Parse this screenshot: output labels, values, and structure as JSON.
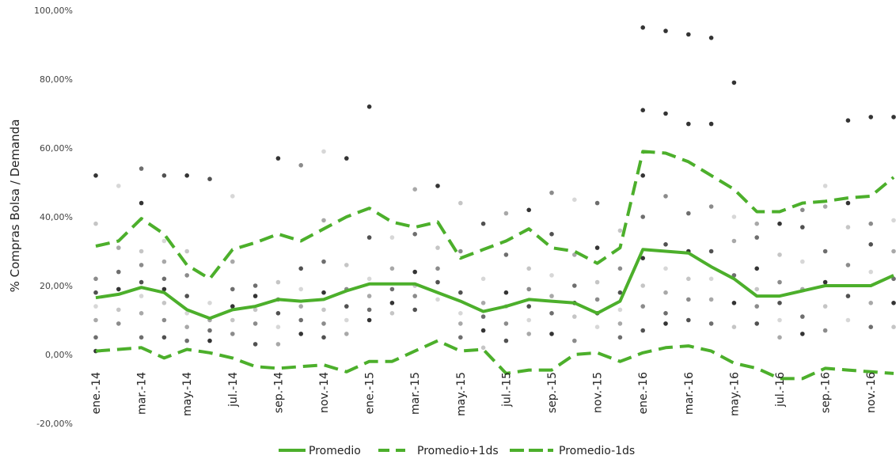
{
  "chart_data": {
    "type": "line",
    "ylabel": "% Compras Bolsa / Demanda",
    "ylim": [
      -20,
      100
    ],
    "yticks": [
      "-20,00%",
      "0,00%",
      "20,00%",
      "40,00%",
      "60,00%",
      "80,00%",
      "100,00%"
    ],
    "ytick_values": [
      -20,
      0,
      20,
      40,
      60,
      80,
      100
    ],
    "x_labels": [
      "ene.-14",
      "mar.-14",
      "may.-14",
      "jul.-14",
      "sep.-14",
      "nov.-14",
      "ene.-15",
      "mar.-15",
      "may.-15",
      "jul.-15",
      "sep.-15",
      "nov.-15",
      "ene.-16",
      "mar.-16",
      "may.-16",
      "jul.-16",
      "sep.-16",
      "nov.-16"
    ],
    "x": [
      "ene.-14",
      "feb.-14",
      "mar.-14",
      "abr.-14",
      "may.-14",
      "jun.-14",
      "jul.-14",
      "ago.-14",
      "sep.-14",
      "oct.-14",
      "nov.-14",
      "dic.-14",
      "ene.-15",
      "feb.-15",
      "mar.-15",
      "abr.-15",
      "may.-15",
      "jun.-15",
      "jul.-15",
      "ago.-15",
      "sep.-15",
      "oct.-15",
      "nov.-15",
      "dic.-15",
      "ene.-16",
      "feb.-16",
      "mar.-16",
      "abr.-16",
      "may.-16",
      "jun.-16",
      "jul.-16",
      "ago.-16",
      "sep.-16",
      "oct.-16",
      "nov.-16",
      "dic.-16"
    ],
    "series": [
      {
        "name": "Promedio",
        "style": "solid",
        "color": "#4caf2b",
        "values": [
          16.5,
          17.5,
          19.5,
          18,
          13,
          10.5,
          13,
          14,
          16,
          15.5,
          16,
          18.5,
          20.5,
          20.5,
          20.5,
          18,
          15.5,
          12.5,
          14,
          16,
          15.5,
          15,
          12,
          15.5,
          30.5,
          30,
          29.5,
          25.5,
          22,
          17,
          17,
          18.5,
          20,
          20,
          20,
          23
        ]
      },
      {
        "name": "Promedio+1ds",
        "style": "dashed",
        "color": "#4caf2b",
        "values": [
          31.5,
          33,
          39.5,
          35,
          26,
          22,
          30.5,
          32.5,
          35,
          33,
          36.5,
          40,
          42.5,
          38.5,
          37,
          38.5,
          28,
          30.5,
          33,
          36.5,
          31,
          30,
          26.5,
          31,
          59,
          58.5,
          56,
          52,
          48,
          41.5,
          41.5,
          44,
          44.5,
          45.5,
          46,
          51.5
        ]
      },
      {
        "name": "Promedio-1ds",
        "style": "dashed",
        "color": "#4caf2b",
        "values": [
          1,
          1.5,
          2,
          -1,
          1.5,
          0.5,
          -1,
          -3.5,
          -4,
          -3.5,
          -3,
          -5,
          -2,
          -2,
          1,
          4,
          1,
          1.5,
          -5.5,
          -4.5,
          -4.5,
          0,
          0.5,
          -2,
          0.5,
          2,
          2.5,
          1,
          -2.5,
          -4,
          -7,
          -7,
          -4,
          -4.5,
          -5,
          -5.5
        ]
      }
    ],
    "scatter": {
      "description": "individual observations",
      "points": [
        [
          0,
          52
        ],
        [
          0,
          38
        ],
        [
          0,
          22
        ],
        [
          0,
          18
        ],
        [
          0,
          14
        ],
        [
          0,
          10
        ],
        [
          0,
          5
        ],
        [
          0,
          1
        ],
        [
          1,
          49
        ],
        [
          1,
          31
        ],
        [
          1,
          24
        ],
        [
          1,
          19
        ],
        [
          1,
          13
        ],
        [
          1,
          9
        ],
        [
          2,
          54
        ],
        [
          2,
          44
        ],
        [
          2,
          30
        ],
        [
          2,
          26
        ],
        [
          2,
          21
        ],
        [
          2,
          17
        ],
        [
          2,
          12
        ],
        [
          2,
          5
        ],
        [
          3,
          52
        ],
        [
          3,
          33
        ],
        [
          3,
          27
        ],
        [
          3,
          22
        ],
        [
          3,
          19
        ],
        [
          3,
          15
        ],
        [
          3,
          10
        ],
        [
          3,
          5
        ],
        [
          4,
          52
        ],
        [
          4,
          30
        ],
        [
          4,
          23
        ],
        [
          4,
          17
        ],
        [
          4,
          12
        ],
        [
          4,
          8
        ],
        [
          4,
          4
        ],
        [
          5,
          51
        ],
        [
          5,
          15
        ],
        [
          5,
          10
        ],
        [
          5,
          7
        ],
        [
          5,
          4
        ],
        [
          6,
          46
        ],
        [
          6,
          27
        ],
        [
          6,
          19
        ],
        [
          6,
          14
        ],
        [
          6,
          10
        ],
        [
          6,
          6
        ],
        [
          7,
          20
        ],
        [
          7,
          17
        ],
        [
          7,
          13
        ],
        [
          7,
          9
        ],
        [
          7,
          3
        ],
        [
          8,
          57
        ],
        [
          8,
          21
        ],
        [
          8,
          16
        ],
        [
          8,
          12
        ],
        [
          8,
          8
        ],
        [
          8,
          3
        ],
        [
          9,
          55
        ],
        [
          9,
          25
        ],
        [
          9,
          19
        ],
        [
          9,
          14
        ],
        [
          9,
          10
        ],
        [
          9,
          6
        ],
        [
          10,
          59
        ],
        [
          10,
          39
        ],
        [
          10,
          27
        ],
        [
          10,
          18
        ],
        [
          10,
          13
        ],
        [
          10,
          9
        ],
        [
          10,
          5
        ],
        [
          11,
          57
        ],
        [
          11,
          26
        ],
        [
          11,
          19
        ],
        [
          11,
          14
        ],
        [
          11,
          10
        ],
        [
          11,
          6
        ],
        [
          12,
          72
        ],
        [
          12,
          34
        ],
        [
          12,
          22
        ],
        [
          12,
          17
        ],
        [
          12,
          13
        ],
        [
          12,
          10
        ],
        [
          13,
          34
        ],
        [
          13,
          25
        ],
        [
          13,
          19
        ],
        [
          13,
          15
        ],
        [
          13,
          12
        ],
        [
          14,
          48
        ],
        [
          14,
          35
        ],
        [
          14,
          24
        ],
        [
          14,
          20
        ],
        [
          14,
          17
        ],
        [
          14,
          13
        ],
        [
          15,
          49
        ],
        [
          15,
          31
        ],
        [
          15,
          25
        ],
        [
          15,
          21
        ],
        [
          15,
          16
        ],
        [
          16,
          44
        ],
        [
          16,
          30
        ],
        [
          16,
          18
        ],
        [
          16,
          12
        ],
        [
          16,
          9
        ],
        [
          16,
          5
        ],
        [
          17,
          38
        ],
        [
          17,
          22
        ],
        [
          17,
          15
        ],
        [
          17,
          11
        ],
        [
          17,
          7
        ],
        [
          17,
          2
        ],
        [
          18,
          41
        ],
        [
          18,
          29
        ],
        [
          18,
          18
        ],
        [
          18,
          14
        ],
        [
          18,
          9
        ],
        [
          18,
          4
        ],
        [
          19,
          42
        ],
        [
          19,
          25
        ],
        [
          19,
          19
        ],
        [
          19,
          14
        ],
        [
          19,
          10
        ],
        [
          19,
          6
        ],
        [
          20,
          47
        ],
        [
          20,
          35
        ],
        [
          20,
          23
        ],
        [
          20,
          17
        ],
        [
          20,
          12
        ],
        [
          20,
          6
        ],
        [
          21,
          45
        ],
        [
          21,
          29
        ],
        [
          21,
          20
        ],
        [
          21,
          15
        ],
        [
          21,
          11
        ],
        [
          21,
          4
        ],
        [
          22,
          44
        ],
        [
          22,
          31
        ],
        [
          22,
          21
        ],
        [
          22,
          16
        ],
        [
          22,
          12
        ],
        [
          22,
          8
        ],
        [
          23,
          36
        ],
        [
          23,
          25
        ],
        [
          23,
          18
        ],
        [
          23,
          13
        ],
        [
          23,
          9
        ],
        [
          23,
          5
        ],
        [
          24,
          95
        ],
        [
          24,
          71
        ],
        [
          24,
          52
        ],
        [
          24,
          40
        ],
        [
          24,
          28
        ],
        [
          24,
          20
        ],
        [
          24,
          14
        ],
        [
          24,
          7
        ],
        [
          25,
          94
        ],
        [
          25,
          70
        ],
        [
          25,
          46
        ],
        [
          25,
          32
        ],
        [
          25,
          25
        ],
        [
          25,
          18
        ],
        [
          25,
          12
        ],
        [
          25,
          9
        ],
        [
          26,
          93
        ],
        [
          26,
          67
        ],
        [
          26,
          41
        ],
        [
          26,
          30
        ],
        [
          26,
          22
        ],
        [
          26,
          16
        ],
        [
          26,
          10
        ],
        [
          27,
          92
        ],
        [
          27,
          67
        ],
        [
          27,
          43
        ],
        [
          27,
          30
        ],
        [
          27,
          22
        ],
        [
          27,
          16
        ],
        [
          27,
          9
        ],
        [
          28,
          79
        ],
        [
          28,
          40
        ],
        [
          28,
          33
        ],
        [
          28,
          23
        ],
        [
          28,
          15
        ],
        [
          28,
          8
        ],
        [
          29,
          38
        ],
        [
          29,
          34
        ],
        [
          29,
          25
        ],
        [
          29,
          19
        ],
        [
          29,
          14
        ],
        [
          29,
          9
        ],
        [
          30,
          38
        ],
        [
          30,
          29
        ],
        [
          30,
          21
        ],
        [
          30,
          15
        ],
        [
          30,
          10
        ],
        [
          30,
          5
        ],
        [
          31,
          42
        ],
        [
          31,
          37
        ],
        [
          31,
          27
        ],
        [
          31,
          19
        ],
        [
          31,
          11
        ],
        [
          31,
          6
        ],
        [
          32,
          49
        ],
        [
          32,
          43
        ],
        [
          32,
          30
        ],
        [
          32,
          21
        ],
        [
          32,
          14
        ],
        [
          32,
          7
        ],
        [
          33,
          68
        ],
        [
          33,
          44
        ],
        [
          33,
          37
        ],
        [
          33,
          26
        ],
        [
          33,
          17
        ],
        [
          33,
          10
        ],
        [
          34,
          69
        ],
        [
          34,
          38
        ],
        [
          34,
          32
        ],
        [
          34,
          24
        ],
        [
          34,
          15
        ],
        [
          34,
          8
        ],
        [
          35,
          69
        ],
        [
          35,
          39
        ],
        [
          35,
          30
        ],
        [
          35,
          22
        ],
        [
          35,
          15
        ],
        [
          35,
          8
        ]
      ]
    },
    "legend_position": "bottom",
    "grid": false
  }
}
